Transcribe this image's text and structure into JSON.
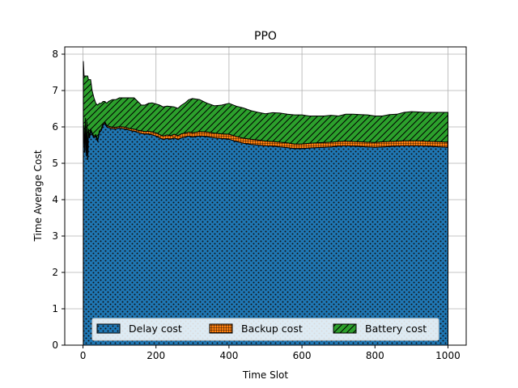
{
  "chart_data": {
    "type": "area",
    "stacked": true,
    "title": "PPO",
    "xlabel": "Time Slot",
    "ylabel": "Time Average Cost",
    "xlim": [
      -50,
      1050
    ],
    "ylim": [
      0,
      8.2
    ],
    "xticks": [
      0,
      200,
      400,
      600,
      800,
      1000
    ],
    "yticks": [
      0,
      1,
      2,
      3,
      4,
      5,
      6,
      7,
      8
    ],
    "grid": true,
    "legend_position": "bottom",
    "x": [
      1,
      3,
      5,
      7,
      9,
      11,
      13,
      15,
      18,
      21,
      25,
      30,
      35,
      40,
      45,
      50,
      55,
      60,
      65,
      70,
      80,
      90,
      100,
      110,
      120,
      130,
      140,
      150,
      160,
      170,
      180,
      190,
      200,
      210,
      220,
      230,
      240,
      250,
      260,
      270,
      280,
      290,
      300,
      320,
      340,
      360,
      380,
      400,
      420,
      440,
      460,
      480,
      500,
      520,
      540,
      560,
      580,
      600,
      620,
      640,
      660,
      680,
      700,
      720,
      740,
      760,
      780,
      800,
      820,
      840,
      860,
      880,
      900,
      920,
      940,
      960,
      980,
      1000
    ],
    "series": [
      {
        "name": "Delay cost",
        "color": "#1f77b4",
        "hatch": "dots",
        "values": [
          5.4,
          6.0,
          5.3,
          6.2,
          5.2,
          6.1,
          5.1,
          5.9,
          5.7,
          5.9,
          5.8,
          5.7,
          5.75,
          5.6,
          5.85,
          5.9,
          6.05,
          6.1,
          6.0,
          5.98,
          5.95,
          5.95,
          5.97,
          5.95,
          5.93,
          5.9,
          5.88,
          5.85,
          5.82,
          5.8,
          5.8,
          5.78,
          5.75,
          5.7,
          5.65,
          5.68,
          5.66,
          5.7,
          5.65,
          5.7,
          5.72,
          5.75,
          5.72,
          5.75,
          5.73,
          5.7,
          5.68,
          5.66,
          5.6,
          5.55,
          5.52,
          5.5,
          5.48,
          5.47,
          5.45,
          5.43,
          5.4,
          5.4,
          5.42,
          5.43,
          5.44,
          5.45,
          5.47,
          5.48,
          5.47,
          5.46,
          5.45,
          5.44,
          5.45,
          5.46,
          5.47,
          5.48,
          5.48,
          5.48,
          5.47,
          5.46,
          5.45,
          5.44
        ]
      },
      {
        "name": "Backup cost",
        "color": "#ff7f0e",
        "hatch": "grid",
        "values": [
          0.04,
          0.04,
          0.04,
          0.04,
          0.04,
          0.04,
          0.04,
          0.04,
          0.04,
          0.04,
          0.04,
          0.04,
          0.04,
          0.04,
          0.04,
          0.04,
          0.04,
          0.04,
          0.04,
          0.04,
          0.04,
          0.04,
          0.04,
          0.05,
          0.05,
          0.05,
          0.06,
          0.06,
          0.07,
          0.07,
          0.08,
          0.08,
          0.09,
          0.09,
          0.1,
          0.1,
          0.1,
          0.1,
          0.11,
          0.11,
          0.11,
          0.11,
          0.12,
          0.12,
          0.13,
          0.13,
          0.13,
          0.14,
          0.14,
          0.14,
          0.14,
          0.14,
          0.13,
          0.13,
          0.13,
          0.13,
          0.13,
          0.13,
          0.13,
          0.13,
          0.13,
          0.13,
          0.13,
          0.13,
          0.13,
          0.13,
          0.13,
          0.13,
          0.14,
          0.14,
          0.14,
          0.14,
          0.14,
          0.14,
          0.14,
          0.14,
          0.14,
          0.14
        ]
      },
      {
        "name": "Battery cost",
        "color": "#2ca02c",
        "hatch": "diagonal",
        "values": [
          2.36,
          1.36,
          2.06,
          1.16,
          2.16,
          1.26,
          2.26,
          1.36,
          1.56,
          1.36,
          1.16,
          1.06,
          0.86,
          0.96,
          0.76,
          0.71,
          0.61,
          0.56,
          0.61,
          0.68,
          0.76,
          0.76,
          0.79,
          0.8,
          0.82,
          0.85,
          0.86,
          0.79,
          0.71,
          0.73,
          0.77,
          0.8,
          0.79,
          0.81,
          0.8,
          0.79,
          0.8,
          0.75,
          0.75,
          0.79,
          0.83,
          0.89,
          0.94,
          0.88,
          0.79,
          0.75,
          0.79,
          0.85,
          0.83,
          0.83,
          0.79,
          0.76,
          0.75,
          0.79,
          0.8,
          0.79,
          0.8,
          0.8,
          0.75,
          0.74,
          0.73,
          0.74,
          0.7,
          0.74,
          0.75,
          0.75,
          0.75,
          0.73,
          0.71,
          0.74,
          0.74,
          0.78,
          0.8,
          0.79,
          0.79,
          0.8,
          0.81,
          0.82
        ]
      }
    ]
  }
}
